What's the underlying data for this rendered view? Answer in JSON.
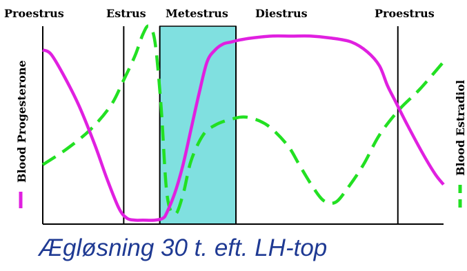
{
  "chart_data": {
    "type": "line",
    "phases": [
      "Proestrus",
      "Estrus",
      "Metestrus",
      "Diestrus",
      "Proestrus"
    ],
    "highlighted_phase": "Metestrus",
    "x_range": [
      0,
      100
    ],
    "y_range": [
      0,
      100
    ],
    "ylabel_left": "Blood Progesterone",
    "ylabel_right": "Blood Estradiol",
    "series": [
      {
        "name": "Blood Progesterone",
        "color": "#e020e0",
        "style": "solid",
        "x": [
          0,
          2,
          5,
          9,
          13,
          16,
          19,
          21,
          23,
          25,
          28,
          30,
          31,
          33,
          35,
          37,
          39,
          41,
          43,
          45,
          47,
          49,
          52,
          57,
          62,
          67,
          72,
          77,
          81,
          84,
          86,
          88,
          91,
          95,
          98,
          100
        ],
        "y": [
          88,
          86,
          76,
          60,
          40,
          23,
          8,
          3,
          2,
          2,
          2,
          3,
          6,
          16,
          30,
          48,
          66,
          82,
          88,
          91,
          92,
          93,
          94,
          95,
          95,
          95,
          94,
          92,
          87,
          80,
          70,
          62,
          50,
          35,
          25,
          20
        ]
      },
      {
        "name": "Blood Estradiol",
        "color": "#22e022",
        "style": "dashed",
        "x": [
          0,
          6,
          12,
          17,
          20,
          23,
          25,
          26.5,
          28,
          29.5,
          31,
          33,
          35,
          37,
          40,
          43,
          47,
          51,
          56,
          61,
          64,
          67,
          70,
          73,
          76,
          80,
          84,
          89,
          94,
          100
        ],
        "y": [
          30,
          38,
          48,
          60,
          72,
          85,
          96,
          100,
          92,
          60,
          15,
          5,
          15,
          32,
          45,
          50,
          53,
          54,
          50,
          40,
          30,
          20,
          12,
          11,
          18,
          30,
          45,
          58,
          68,
          82
        ]
      }
    ],
    "phase_boundaries": [
      20.2,
      29.2,
      48.2,
      88.6
    ],
    "caption": "Ægløsning 30 t. eft. LH-top",
    "colors": {
      "metestrus_fill": "#80e0e0",
      "caption": "#1f3a93"
    }
  }
}
